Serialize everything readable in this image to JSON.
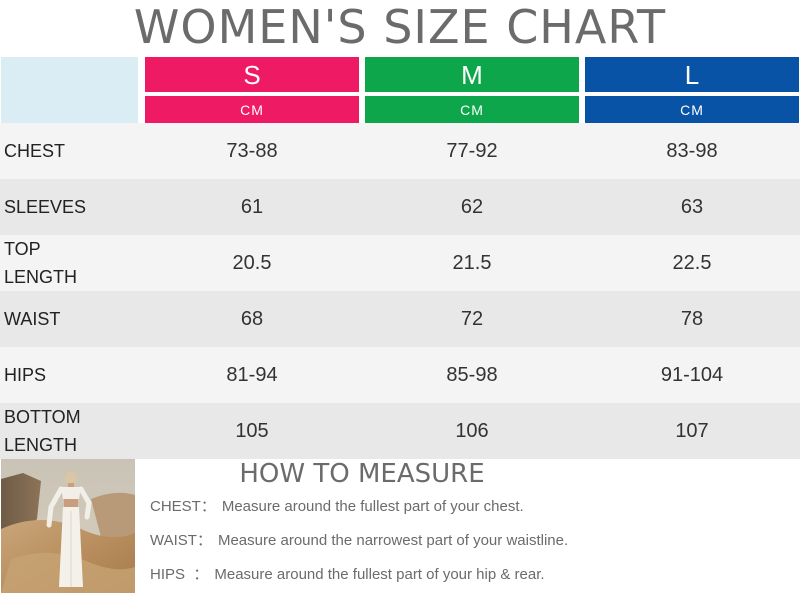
{
  "title": "WOMEN'S SIZE CHART",
  "colors": {
    "S": "#ee1a63",
    "M": "#0da64a",
    "L": "#0853a6",
    "corner": "#daedf5"
  },
  "sizes": [
    {
      "label": "S",
      "unit": "CM"
    },
    {
      "label": "M",
      "unit": "CM"
    },
    {
      "label": "L",
      "unit": "CM"
    }
  ],
  "rows": [
    {
      "label": "CHEST",
      "values": [
        "73-88",
        "77-92",
        "83-98"
      ]
    },
    {
      "label": "SLEEVES",
      "values": [
        "61",
        "62",
        "63"
      ]
    },
    {
      "label_line1": "TOP",
      "label_line2": "LENGTH",
      "values": [
        "20.5",
        "21.5",
        "22.5"
      ]
    },
    {
      "label": "WAIST",
      "values": [
        "68",
        "72",
        "78"
      ]
    },
    {
      "label": "HIPS",
      "values": [
        "81-94",
        "85-98",
        "91-104"
      ]
    },
    {
      "label_line1": "BOTTOM",
      "label_line2": "LENGTH",
      "values": [
        "105",
        "106",
        "107"
      ]
    }
  ],
  "how_to_measure": {
    "title": "HOW TO MEASURE",
    "items": [
      {
        "key": "CHEST：",
        "text": "Measure around the fullest part of your chest."
      },
      {
        "key": "WAIST：",
        "text": "Measure around the narrowest part of your waistline."
      },
      {
        "key": "HIPS  ：",
        "text": "Measure around the fullest part of your hip & rear."
      }
    ]
  }
}
